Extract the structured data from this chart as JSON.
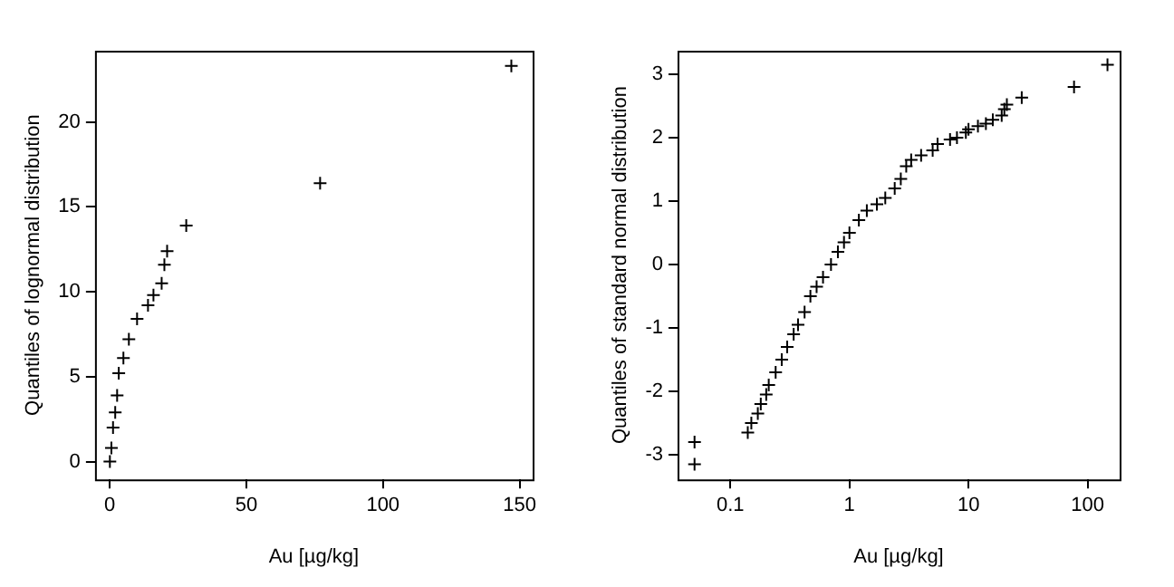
{
  "chart_data": [
    {
      "type": "scatter",
      "xlabel": "Au [µg/kg]",
      "ylabel": "Quantiles of lognormal distribution",
      "color": "#000000",
      "marker": "cross",
      "grid": false,
      "legend": false,
      "x": [
        0.05,
        0.6,
        1.2,
        2.0,
        2.7,
        3.3,
        5,
        7,
        10,
        14,
        16,
        19,
        20,
        21,
        28,
        77,
        147
      ],
      "values": [
        0.0,
        0.8,
        2.0,
        2.9,
        3.9,
        5.2,
        6.1,
        7.2,
        8.4,
        9.2,
        9.8,
        10.5,
        11.6,
        12.4,
        13.9,
        16.4,
        23.3
      ],
      "xlim": [
        -5.4,
        154.8
      ],
      "ylim": [
        -1.05,
        24.2
      ],
      "xticks": [
        0,
        50,
        100,
        150
      ],
      "yticks": [
        0,
        5,
        10,
        15,
        20
      ]
    },
    {
      "type": "scatter",
      "xlabel": "Au [µg/kg]",
      "ylabel": "Quantiles of standard normal distribution",
      "color": "#000000",
      "marker": "cross",
      "grid": false,
      "legend": false,
      "log": "x",
      "x": [
        0.05,
        0.05,
        0.14,
        0.15,
        0.17,
        0.18,
        0.2,
        0.21,
        0.24,
        0.27,
        0.3,
        0.34,
        0.37,
        0.42,
        0.47,
        0.53,
        0.6,
        0.7,
        0.8,
        0.9,
        1.0,
        1.2,
        1.4,
        1.7,
        2.0,
        2.4,
        2.7,
        3.0,
        3.3,
        4,
        5,
        5.5,
        7,
        8,
        9.5,
        10,
        12,
        14,
        16,
        19,
        20,
        21,
        28,
        77,
        147
      ],
      "values": [
        -3.15,
        -2.8,
        -2.65,
        -2.5,
        -2.35,
        -2.2,
        -2.05,
        -1.9,
        -1.7,
        -1.5,
        -1.3,
        -1.1,
        -0.95,
        -0.75,
        -0.5,
        -0.35,
        -0.2,
        0,
        0.2,
        0.35,
        0.5,
        0.7,
        0.85,
        0.95,
        1.05,
        1.2,
        1.35,
        1.55,
        1.65,
        1.72,
        1.8,
        1.9,
        1.97,
        2.0,
        2.08,
        2.13,
        2.18,
        2.22,
        2.28,
        2.35,
        2.45,
        2.52,
        2.63,
        2.8,
        3.15
      ],
      "xlim": [
        0.036,
        186
      ],
      "ylim": [
        -3.39,
        3.37
      ],
      "xticks": [
        0.1,
        1,
        10,
        100
      ],
      "yticks": [
        -3,
        -2,
        -1,
        0,
        1,
        2,
        3
      ]
    }
  ]
}
